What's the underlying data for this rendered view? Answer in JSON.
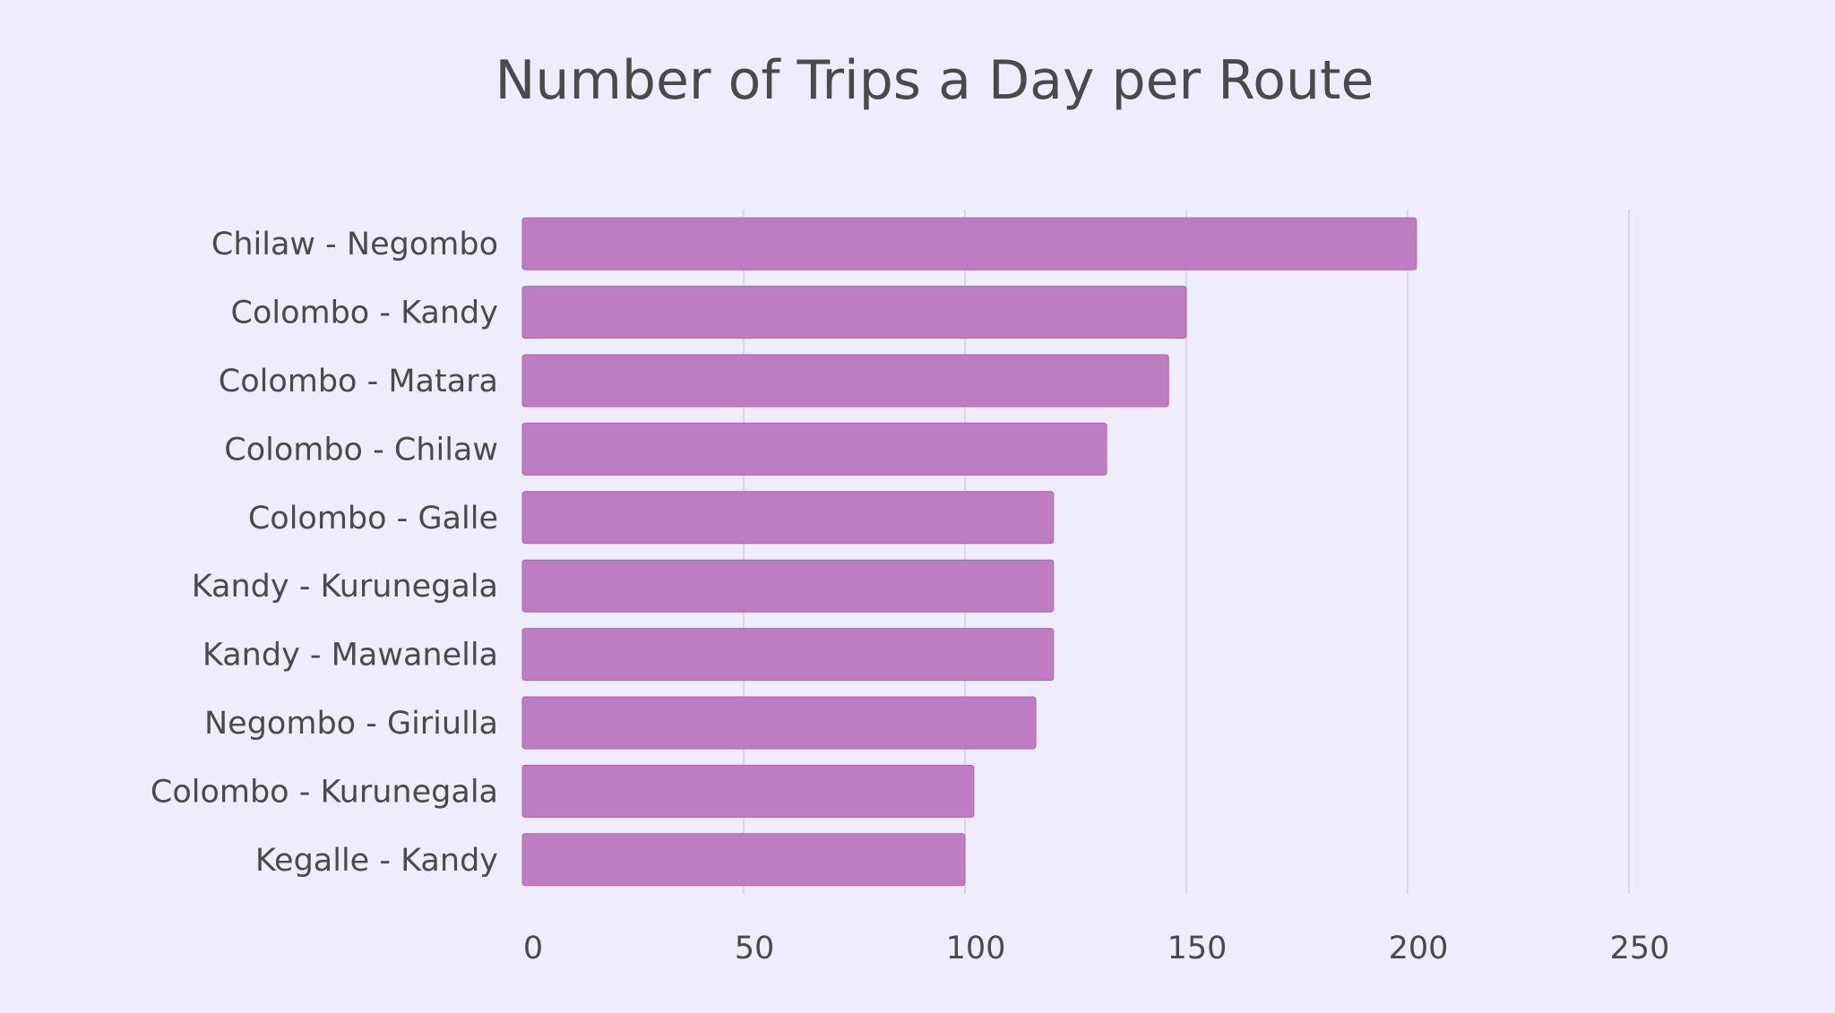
{
  "chart_data": {
    "type": "bar",
    "orientation": "horizontal",
    "title": "Number of Trips a Day per Route",
    "xlabel": "",
    "ylabel": "",
    "categories": [
      "Chilaw - Negombo",
      "Colombo - Kandy",
      "Colombo - Matara",
      "Colombo - Chilaw",
      "Colombo - Galle",
      "Kandy - Kurunegala",
      "Kandy - Mawanella",
      "Negombo - Giriulla",
      "Colombo - Kurunegala",
      "Kegalle - Kandy"
    ],
    "values": [
      202,
      150,
      146,
      132,
      120,
      120,
      120,
      116,
      102,
      100
    ],
    "xlim": [
      0,
      250
    ],
    "xticks": [
      "0",
      "50",
      "100",
      "150",
      "200",
      "250"
    ],
    "grid": true,
    "legend": "none",
    "colors": {
      "bar": "#bf7dc1",
      "bar_border": "#ac63b0",
      "background": "#efedfd",
      "gridline": "#d4cde4",
      "text": "#4a4a4a"
    }
  }
}
